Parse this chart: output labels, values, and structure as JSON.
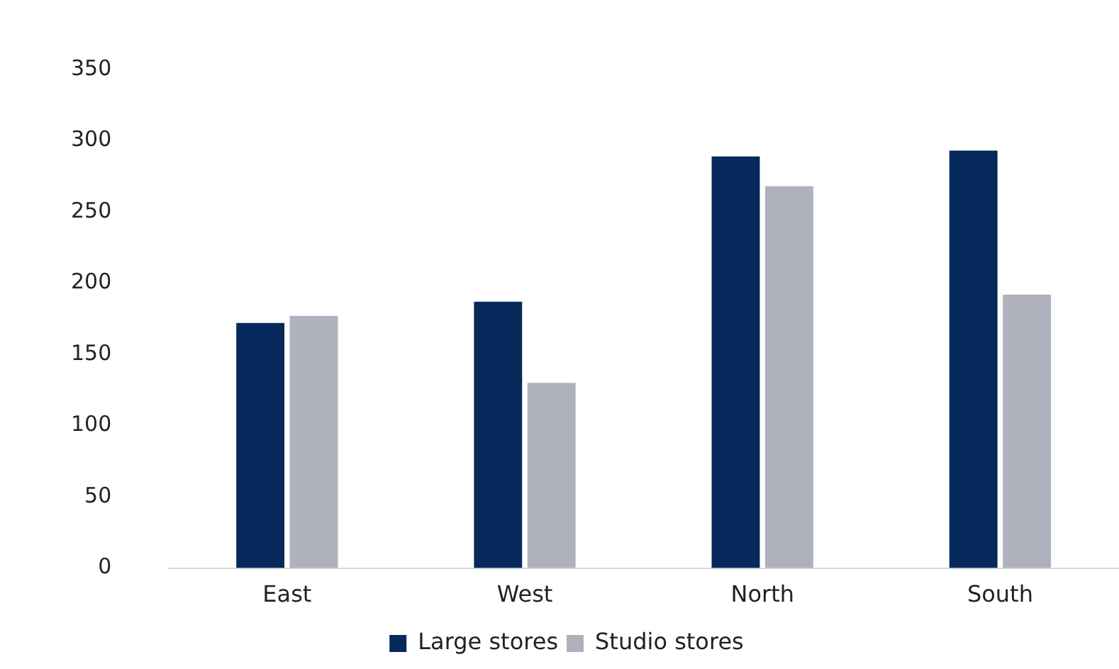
{
  "chart_data": {
    "type": "bar",
    "categories": [
      "East",
      "West",
      "North",
      "South"
    ],
    "series": [
      {
        "name": "Large stores",
        "color": "#05295a",
        "values": [
          172,
          187,
          289,
          293
        ]
      },
      {
        "name": "Studio stores",
        "color": "#afb1bd",
        "values": [
          177,
          130,
          268,
          192
        ]
      }
    ],
    "ylim": [
      0,
      350
    ],
    "yticks": [
      0,
      50,
      100,
      150,
      200,
      250,
      300,
      350
    ],
    "grid": false,
    "legend": "bottom"
  }
}
